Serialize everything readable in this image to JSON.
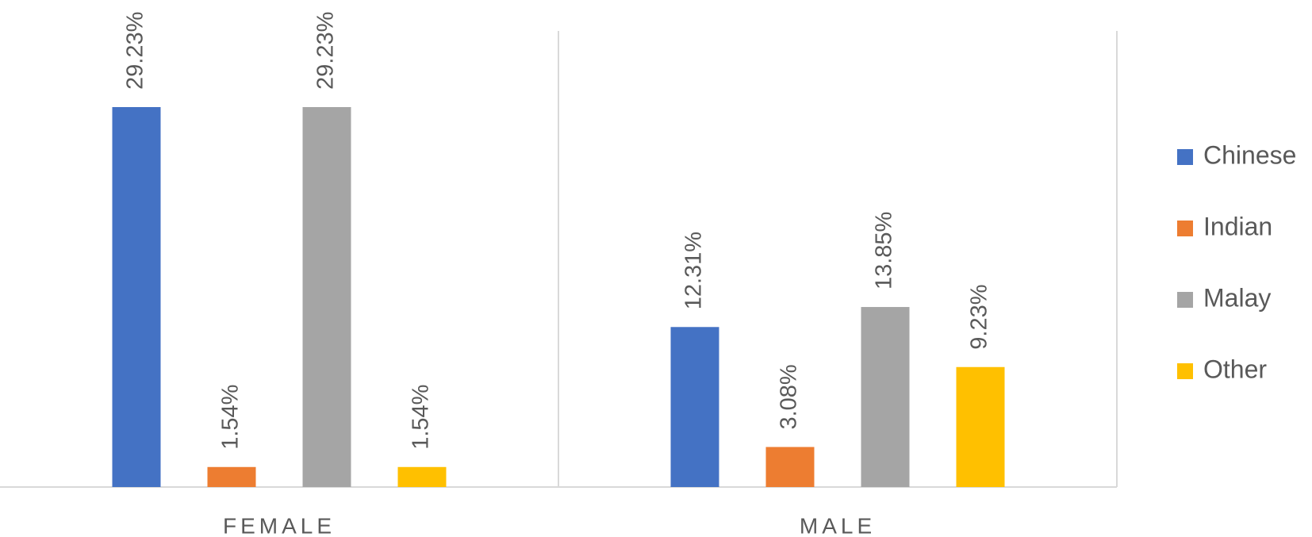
{
  "chart_data": {
    "type": "bar",
    "categories": [
      "FEMALE",
      "MALE"
    ],
    "series": [
      {
        "name": "Chinese",
        "color": "#4472c4",
        "values": [
          29.23,
          12.31
        ],
        "value_labels": [
          "29.23%",
          "12.31%"
        ]
      },
      {
        "name": "Indian",
        "color": "#ed7d31",
        "values": [
          1.54,
          3.08
        ],
        "value_labels": [
          "1.54%",
          "3.08%"
        ]
      },
      {
        "name": "Malay",
        "color": "#a5a5a5",
        "values": [
          29.23,
          13.85
        ],
        "value_labels": [
          "29.23%",
          "13.85%"
        ]
      },
      {
        "name": "Other",
        "color": "#ffc000",
        "values": [
          1.54,
          9.23
        ],
        "value_labels": [
          "1.54%",
          "9.23%"
        ]
      }
    ],
    "legend": "right"
  }
}
